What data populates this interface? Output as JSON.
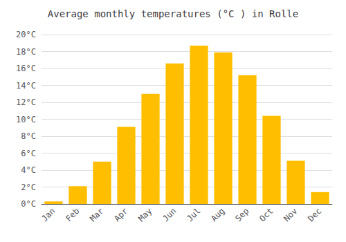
{
  "chart_data": {
    "type": "bar",
    "title": "Average monthly temperatures (°C ) in Rolle",
    "categories": [
      "Jan",
      "Feb",
      "Mar",
      "Apr",
      "May",
      "Jun",
      "Jul",
      "Aug",
      "Sep",
      "Oct",
      "Nov",
      "Dec"
    ],
    "values": [
      0.3,
      2.1,
      5.0,
      9.1,
      13.0,
      16.6,
      18.7,
      17.9,
      15.2,
      10.4,
      5.1,
      1.4
    ],
    "color": "#FFBE00",
    "ylim": [
      0,
      20
    ],
    "yticks": [
      {
        "value": 0,
        "label": "0°C"
      },
      {
        "value": 2,
        "label": "2°C"
      },
      {
        "value": 4,
        "label": "4°C"
      },
      {
        "value": 6,
        "label": "6°C"
      },
      {
        "value": 8,
        "label": "8°C"
      },
      {
        "value": 10,
        "label": "10°C"
      },
      {
        "value": 12,
        "label": "12°C"
      },
      {
        "value": 14,
        "label": "14°C"
      },
      {
        "value": 16,
        "label": "16°C"
      },
      {
        "value": 18,
        "label": "18°C"
      },
      {
        "value": 20,
        "label": "20°C"
      }
    ],
    "grid": true
  }
}
